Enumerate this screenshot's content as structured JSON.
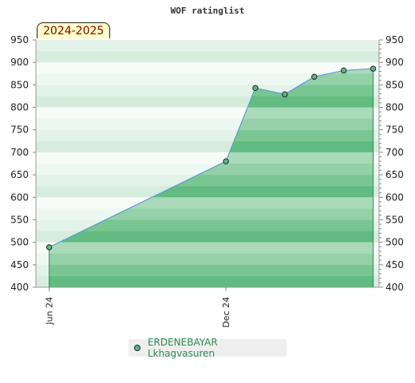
{
  "chart_data": {
    "type": "area",
    "title": "WOF ratinglist",
    "period_label": "2024-2025",
    "x_tick_labels": [
      {
        "label": "Jun 24",
        "x": 0
      },
      {
        "label": "Dec 24",
        "x": 6
      }
    ],
    "series": [
      {
        "name": "ERDENEBAYAR Lkhagvasuren",
        "x": [
          0,
          6,
          7,
          8,
          9,
          10,
          11
        ],
        "values": [
          489,
          680,
          843,
          829,
          868,
          882,
          886
        ]
      }
    ],
    "ylim": [
      400,
      950
    ],
    "y_tick_step": 50,
    "grid": true,
    "legend_position": "bottom",
    "colors": {
      "fill": "#5cb87a",
      "line": "#5a9bd5",
      "marker": "#5cb87a",
      "band_dark": "#a3d8b6",
      "band_light": "#ffffff"
    }
  }
}
